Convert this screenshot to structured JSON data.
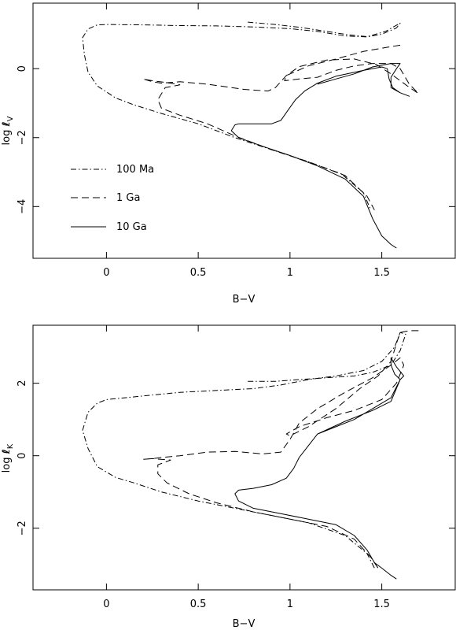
{
  "chart_data": [
    {
      "type": "line",
      "xlabel": "B−V",
      "ylabel_main": "log ",
      "ylabel_italic": "ℓ",
      "ylabel_sub": "V",
      "xlim": [
        -0.4,
        1.9
      ],
      "ylim": [
        -5.5,
        1.9
      ],
      "xticks": [
        0,
        0.5,
        1,
        1.5
      ],
      "xtick_labels": [
        "0",
        "0.5",
        "1",
        "1.5"
      ],
      "yticks": [
        0,
        -2,
        -4
      ],
      "ytick_labels": [
        "0",
        "−2",
        "−4"
      ],
      "legend_position": "lower-left",
      "series": [
        {
          "name": "100 Ma",
          "style": "dashdot",
          "points": [
            [
              0.77,
              1.35
            ],
            [
              0.92,
              1.28
            ],
            [
              1.05,
              1.2
            ],
            [
              1.2,
              1.08
            ],
            [
              1.32,
              0.98
            ],
            [
              1.42,
              0.93
            ],
            [
              1.52,
              1.08
            ],
            [
              1.6,
              1.32
            ],
            [
              1.58,
              1.18
            ],
            [
              1.5,
              1.0
            ],
            [
              1.42,
              0.92
            ],
            [
              1.3,
              0.95
            ],
            [
              1.15,
              1.08
            ],
            [
              1.0,
              1.16
            ],
            [
              0.8,
              1.21
            ],
            [
              0.6,
              1.24
            ],
            [
              0.4,
              1.25
            ],
            [
              0.2,
              1.27
            ],
            [
              0.0,
              1.28
            ],
            [
              -0.05,
              1.27
            ],
            [
              -0.1,
              1.15
            ],
            [
              -0.13,
              0.9
            ],
            [
              -0.12,
              0.4
            ],
            [
              -0.1,
              -0.1
            ],
            [
              -0.05,
              -0.5
            ],
            [
              0.05,
              -0.85
            ],
            [
              0.15,
              -1.05
            ],
            [
              0.3,
              -1.3
            ],
            [
              0.5,
              -1.6
            ],
            [
              0.7,
              -2.0
            ],
            [
              0.9,
              -2.35
            ],
            [
              1.1,
              -2.7
            ],
            [
              1.28,
              -3.05
            ],
            [
              1.4,
              -3.6
            ],
            [
              1.44,
              -4.1
            ]
          ]
        },
        {
          "name": "1 Ga",
          "style": "dashed",
          "points": [
            [
              1.6,
              0.68
            ],
            [
              1.53,
              0.62
            ],
            [
              1.4,
              0.5
            ],
            [
              1.25,
              0.28
            ],
            [
              1.1,
              0.08
            ],
            [
              0.98,
              -0.2
            ],
            [
              0.97,
              -0.35
            ],
            [
              1.05,
              -0.3
            ],
            [
              1.15,
              -0.25
            ],
            [
              1.25,
              -0.05
            ],
            [
              1.35,
              0.08
            ],
            [
              1.45,
              0.15
            ],
            [
              1.55,
              0.15
            ],
            [
              1.6,
              0.0
            ],
            [
              1.65,
              -0.45
            ],
            [
              1.7,
              -0.72
            ],
            [
              1.66,
              -0.58
            ],
            [
              1.6,
              -0.35
            ],
            [
              1.55,
              -0.15
            ],
            [
              1.47,
              0.12
            ],
            [
              1.35,
              0.28
            ],
            [
              1.2,
              0.25
            ],
            [
              1.05,
              0.06
            ],
            [
              0.98,
              -0.2
            ],
            [
              0.92,
              -0.55
            ],
            [
              0.88,
              -0.65
            ],
            [
              0.75,
              -0.6
            ],
            [
              0.55,
              -0.45
            ],
            [
              0.4,
              -0.38
            ],
            [
              0.3,
              -0.42
            ],
            [
              0.25,
              -0.38
            ],
            [
              0.2,
              -0.3
            ],
            [
              0.25,
              -0.35
            ],
            [
              0.35,
              -0.42
            ],
            [
              0.4,
              -0.47
            ],
            [
              0.32,
              -0.55
            ],
            [
              0.28,
              -0.9
            ],
            [
              0.3,
              -1.15
            ],
            [
              0.4,
              -1.35
            ],
            [
              0.55,
              -1.6
            ],
            [
              0.7,
              -1.95
            ],
            [
              0.9,
              -2.35
            ],
            [
              1.1,
              -2.7
            ],
            [
              1.3,
              -3.1
            ],
            [
              1.42,
              -3.7
            ],
            [
              1.46,
              -4.1
            ]
          ]
        },
        {
          "name": "10 Ga",
          "style": "solid",
          "points": [
            [
              1.15,
              -0.45
            ],
            [
              1.25,
              -0.3
            ],
            [
              1.35,
              -0.15
            ],
            [
              1.45,
              0.05
            ],
            [
              1.55,
              0.15
            ],
            [
              1.6,
              0.15
            ],
            [
              1.58,
              0.0
            ],
            [
              1.55,
              -0.25
            ],
            [
              1.55,
              -0.55
            ],
            [
              1.6,
              -0.7
            ],
            [
              1.65,
              -0.8
            ],
            [
              1.6,
              -0.7
            ],
            [
              1.56,
              -0.55
            ],
            [
              1.54,
              -0.3
            ],
            [
              1.53,
              0.0
            ],
            [
              1.5,
              0.05
            ],
            [
              1.4,
              -0.05
            ],
            [
              1.25,
              -0.22
            ],
            [
              1.15,
              -0.42
            ],
            [
              1.08,
              -0.65
            ],
            [
              1.03,
              -0.9
            ],
            [
              0.99,
              -1.2
            ],
            [
              0.95,
              -1.5
            ],
            [
              0.9,
              -1.6
            ],
            [
              0.8,
              -1.6
            ],
            [
              0.72,
              -1.6
            ],
            [
              0.7,
              -1.63
            ],
            [
              0.68,
              -1.8
            ],
            [
              0.72,
              -2.0
            ],
            [
              0.85,
              -2.25
            ],
            [
              1.0,
              -2.52
            ],
            [
              1.15,
              -2.82
            ],
            [
              1.3,
              -3.2
            ],
            [
              1.4,
              -3.7
            ],
            [
              1.45,
              -4.35
            ],
            [
              1.5,
              -4.85
            ],
            [
              1.55,
              -5.1
            ],
            [
              1.58,
              -5.2
            ]
          ]
        }
      ]
    },
    {
      "type": "line",
      "xlabel": "B−V",
      "ylabel_main": "log ",
      "ylabel_italic": "ℓ",
      "ylabel_sub": "K",
      "xlim": [
        -0.4,
        1.9
      ],
      "ylim": [
        -3.7,
        3.6
      ],
      "xticks": [
        0,
        0.5,
        1,
        1.5
      ],
      "xtick_labels": [
        "0",
        "0.5",
        "1",
        "1.5"
      ],
      "yticks": [
        2,
        0,
        -2
      ],
      "ytick_labels": [
        "2",
        "0",
        "−2"
      ],
      "series": [
        {
          "name": "100 Ma",
          "style": "dashdot",
          "points": [
            [
              0.77,
              2.05
            ],
            [
              0.92,
              2.05
            ],
            [
              1.05,
              2.1
            ],
            [
              1.2,
              2.15
            ],
            [
              1.35,
              2.2
            ],
            [
              1.45,
              2.3
            ],
            [
              1.55,
              2.5
            ],
            [
              1.6,
              2.9
            ],
            [
              1.63,
              3.35
            ],
            [
              1.6,
              3.4
            ],
            [
              1.57,
              3.0
            ],
            [
              1.5,
              2.6
            ],
            [
              1.4,
              2.35
            ],
            [
              1.25,
              2.2
            ],
            [
              1.1,
              2.1
            ],
            [
              0.95,
              1.95
            ],
            [
              0.8,
              1.85
            ],
            [
              0.6,
              1.8
            ],
            [
              0.4,
              1.75
            ],
            [
              0.2,
              1.65
            ],
            [
              0.0,
              1.55
            ],
            [
              -0.05,
              1.45
            ],
            [
              -0.1,
              1.2
            ],
            [
              -0.13,
              0.7
            ],
            [
              -0.1,
              0.2
            ],
            [
              -0.05,
              -0.3
            ],
            [
              0.05,
              -0.6
            ],
            [
              0.15,
              -0.75
            ],
            [
              0.3,
              -1.0
            ],
            [
              0.5,
              -1.25
            ],
            [
              0.7,
              -1.45
            ],
            [
              0.9,
              -1.65
            ],
            [
              1.1,
              -1.85
            ],
            [
              1.3,
              -2.2
            ],
            [
              1.42,
              -2.7
            ],
            [
              1.46,
              -3.1
            ]
          ]
        },
        {
          "name": "1 Ga",
          "style": "dashed",
          "points": [
            [
              1.7,
              3.45
            ],
            [
              1.65,
              3.45
            ],
            [
              1.6,
              3.4
            ],
            [
              1.58,
              3.1
            ],
            [
              1.55,
              2.6
            ],
            [
              1.48,
              2.2
            ],
            [
              1.38,
              1.85
            ],
            [
              1.25,
              1.3
            ],
            [
              1.1,
              0.8
            ],
            [
              1.0,
              0.55
            ],
            [
              0.98,
              0.6
            ],
            [
              1.05,
              0.8
            ],
            [
              1.2,
              1.05
            ],
            [
              1.35,
              1.25
            ],
            [
              1.5,
              1.55
            ],
            [
              1.58,
              2.0
            ],
            [
              1.62,
              2.5
            ],
            [
              1.6,
              2.7
            ],
            [
              1.55,
              2.5
            ],
            [
              1.45,
              2.15
            ],
            [
              1.3,
              1.75
            ],
            [
              1.15,
              1.3
            ],
            [
              1.05,
              0.9
            ],
            [
              1.0,
              0.45
            ],
            [
              0.95,
              0.1
            ],
            [
              0.85,
              0.05
            ],
            [
              0.7,
              0.12
            ],
            [
              0.55,
              0.1
            ],
            [
              0.4,
              0.0
            ],
            [
              0.3,
              -0.05
            ],
            [
              0.25,
              -0.08
            ],
            [
              0.2,
              -0.1
            ],
            [
              0.25,
              -0.08
            ],
            [
              0.35,
              -0.12
            ],
            [
              0.28,
              -0.25
            ],
            [
              0.28,
              -0.5
            ],
            [
              0.33,
              -0.75
            ],
            [
              0.45,
              -1.05
            ],
            [
              0.6,
              -1.3
            ],
            [
              0.8,
              -1.55
            ],
            [
              1.0,
              -1.75
            ],
            [
              1.2,
              -1.95
            ],
            [
              1.35,
              -2.3
            ],
            [
              1.44,
              -2.8
            ],
            [
              1.48,
              -3.1
            ]
          ]
        },
        {
          "name": "10 Ga",
          "style": "solid",
          "points": [
            [
              1.15,
              0.6
            ],
            [
              1.25,
              0.8
            ],
            [
              1.35,
              1.0
            ],
            [
              1.45,
              1.3
            ],
            [
              1.55,
              1.6
            ],
            [
              1.6,
              2.1
            ],
            [
              1.62,
              2.2
            ],
            [
              1.58,
              2.45
            ],
            [
              1.55,
              2.7
            ],
            [
              1.55,
              2.5
            ],
            [
              1.57,
              2.25
            ],
            [
              1.6,
              2.1
            ],
            [
              1.55,
              1.5
            ],
            [
              1.45,
              1.25
            ],
            [
              1.3,
              0.95
            ],
            [
              1.15,
              0.6
            ],
            [
              1.05,
              -0.05
            ],
            [
              1.02,
              -0.35
            ],
            [
              0.98,
              -0.62
            ],
            [
              0.9,
              -0.8
            ],
            [
              0.8,
              -0.9
            ],
            [
              0.72,
              -0.95
            ],
            [
              0.7,
              -1.05
            ],
            [
              0.72,
              -1.25
            ],
            [
              0.8,
              -1.45
            ],
            [
              0.95,
              -1.6
            ],
            [
              1.1,
              -1.75
            ],
            [
              1.25,
              -1.9
            ],
            [
              1.35,
              -2.2
            ],
            [
              1.42,
              -2.6
            ],
            [
              1.46,
              -2.95
            ],
            [
              1.5,
              -3.1
            ],
            [
              1.55,
              -3.3
            ],
            [
              1.58,
              -3.4
            ]
          ]
        }
      ]
    }
  ]
}
